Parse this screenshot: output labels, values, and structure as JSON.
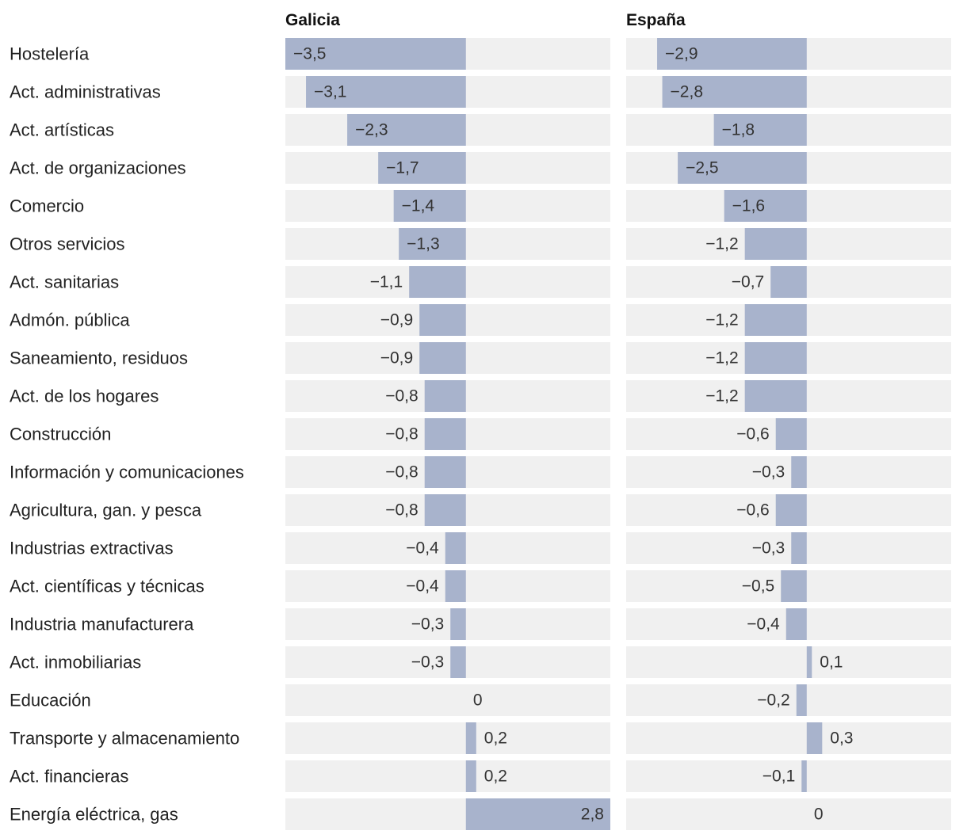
{
  "chart_data": {
    "type": "bar",
    "orientation": "horizontal",
    "categories": [
      "Hostelería",
      "Act. administrativas",
      "Act. artísticas",
      "Act. de organizaciones",
      "Comercio",
      "Otros servicios",
      "Act. sanitarias",
      "Admón. pública",
      "Saneamiento, residuos",
      "Act. de los hogares",
      "Construcción",
      "Información y comunicaciones",
      "Agricultura, gan. y pesca",
      "Industrias extractivas",
      "Act. científicas y técnicas",
      "Industria manufacturera",
      "Act. inmobiliarias",
      "Educación",
      "Transporte y almacenamiento",
      "Act. financieras",
      "Energía eléctrica, gas"
    ],
    "series": [
      {
        "name": "Galicia",
        "values": [
          -3.5,
          -3.1,
          -2.3,
          -1.7,
          -1.4,
          -1.3,
          -1.1,
          -0.9,
          -0.9,
          -0.8,
          -0.8,
          -0.8,
          -0.8,
          -0.4,
          -0.4,
          -0.3,
          -0.3,
          0,
          0.2,
          0.2,
          2.8
        ],
        "labels": [
          "−3,5",
          "−3,1",
          "−2,3",
          "−1,7",
          "−1,4",
          "−1,3",
          "−1,1",
          "−0,9",
          "−0,9",
          "−0,8",
          "−0,8",
          "−0,8",
          "−0,8",
          "−0,4",
          "−0,4",
          "−0,3",
          "−0,3",
          "0",
          "0,2",
          "0,2",
          "2,8"
        ],
        "range": [
          -3.5,
          2.8
        ]
      },
      {
        "name": "España",
        "values": [
          -2.9,
          -2.8,
          -1.8,
          -2.5,
          -1.6,
          -1.2,
          -0.7,
          -1.2,
          -1.2,
          -1.2,
          -0.6,
          -0.3,
          -0.6,
          -0.3,
          -0.5,
          -0.4,
          0.1,
          -0.2,
          0.3,
          -0.1,
          0
        ],
        "labels": [
          "−2,9",
          "−2,8",
          "−1,8",
          "−2,5",
          "−1,6",
          "−1,2",
          "−0,7",
          "−1,2",
          "−1,2",
          "−1,2",
          "−0,6",
          "−0,3",
          "−0,6",
          "−0,3",
          "−0,5",
          "−0,4",
          "0,1",
          "−0,2",
          "0,3",
          "−0,1",
          "0"
        ],
        "range": [
          -3.5,
          2.8
        ]
      }
    ],
    "colors": {
      "bar": "#a8b3cc",
      "track": "#f0f0f0"
    }
  }
}
